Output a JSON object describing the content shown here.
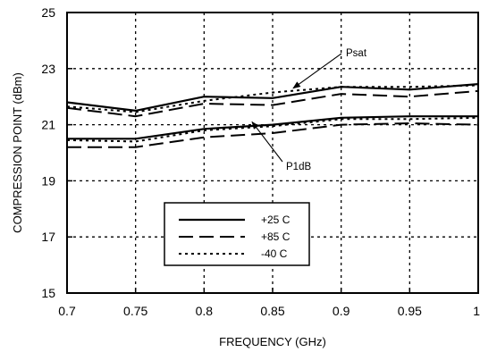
{
  "chart_data": {
    "type": "line",
    "title": "",
    "xlabel": "FREQUENCY (GHz)",
    "ylabel": "COMPRESSION POINT (dBm)",
    "xlim": [
      0.7,
      1.0
    ],
    "ylim": [
      15,
      25
    ],
    "x_ticks": [
      0.7,
      0.75,
      0.8,
      0.85,
      0.9,
      0.95,
      1.0
    ],
    "x_tick_labels": [
      "0.7",
      "0.75",
      "0.8",
      "0.85",
      "0.9",
      "0.95",
      "1"
    ],
    "y_ticks": [
      15,
      17,
      19,
      21,
      23,
      25
    ],
    "y_tick_labels": [
      "15",
      "17",
      "19",
      "21",
      "23",
      "25"
    ],
    "grid": true,
    "legend_position": "lower-left",
    "x": [
      0.7,
      0.75,
      0.8,
      0.85,
      0.9,
      0.95,
      1.0
    ],
    "series": [
      {
        "name": "+25 C",
        "group": "Psat",
        "style": "solid",
        "values": [
          21.8,
          21.5,
          22.0,
          21.95,
          22.35,
          22.25,
          22.45
        ]
      },
      {
        "name": "+85 C",
        "group": "Psat",
        "style": "dashed",
        "values": [
          21.6,
          21.3,
          21.75,
          21.7,
          22.1,
          22.0,
          22.2
        ]
      },
      {
        "name": "-40 C",
        "group": "Psat",
        "style": "dotted",
        "values": [
          21.65,
          21.45,
          21.85,
          22.15,
          22.35,
          22.35,
          22.4
        ]
      },
      {
        "name": "+25 C",
        "group": "P1dB",
        "style": "solid",
        "values": [
          20.5,
          20.5,
          20.85,
          21.0,
          21.25,
          21.3,
          21.3
        ]
      },
      {
        "name": "+85 C",
        "group": "P1dB",
        "style": "dashed",
        "values": [
          20.2,
          20.2,
          20.55,
          20.7,
          21.0,
          21.05,
          21.0
        ]
      },
      {
        "name": "-40 C",
        "group": "P1dB",
        "style": "dotted",
        "values": [
          20.45,
          20.4,
          20.8,
          20.95,
          21.2,
          21.2,
          21.25
        ]
      }
    ],
    "annotations": [
      {
        "text": "Psat",
        "points_to_x": 0.865,
        "points_to_y": 22.3
      },
      {
        "text": "P1dB",
        "points_to_x": 0.835,
        "points_to_y": 21.1
      }
    ],
    "legend": [
      {
        "label": "+25 C",
        "style": "solid"
      },
      {
        "label": "+85 C",
        "style": "dashed"
      },
      {
        "label": "-40 C",
        "style": "dotted"
      }
    ]
  }
}
